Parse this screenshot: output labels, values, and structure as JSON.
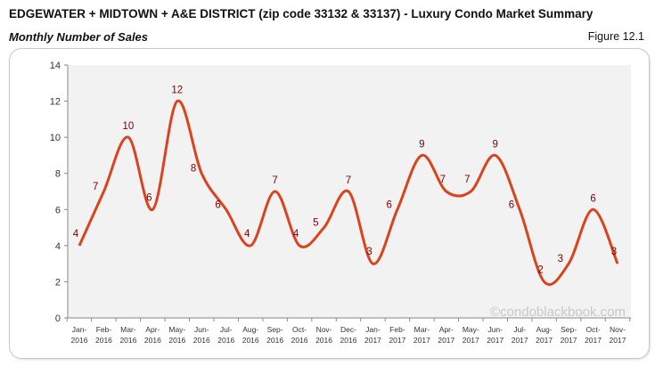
{
  "header": {
    "title": "EDGEWATER + MIDTOWN + A&E DISTRICT (zip code 33132 & 33137) - Luxury Condo Market Summary",
    "subtitle": "Monthly Number of Sales",
    "figure": "Figure 12.1"
  },
  "watermark": "©condoblackbook.com",
  "chart_data": {
    "type": "line",
    "title": "Monthly Number of Sales",
    "xlabel": "",
    "ylabel": "",
    "ylim": [
      0,
      14
    ],
    "yticks": [
      0,
      2,
      4,
      6,
      8,
      10,
      12,
      14
    ],
    "grid": false,
    "categories": [
      [
        "Jan-",
        "2016"
      ],
      [
        "Feb-",
        "2016"
      ],
      [
        "Mar-",
        "2016"
      ],
      [
        "Apr-",
        "2016"
      ],
      [
        "May-",
        "2016"
      ],
      [
        "Jun-",
        "2016"
      ],
      [
        "Jul-",
        "2016"
      ],
      [
        "Aug-",
        "2016"
      ],
      [
        "Sep-",
        "2016"
      ],
      [
        "Oct-",
        "2016"
      ],
      [
        "Nov-",
        "2016"
      ],
      [
        "Dec-",
        "2016"
      ],
      [
        "Jan-",
        "2017"
      ],
      [
        "Feb-",
        "2017"
      ],
      [
        "Mar-",
        "2017"
      ],
      [
        "Apr-",
        "2017"
      ],
      [
        "May-",
        "2017"
      ],
      [
        "Jun-",
        "2017"
      ],
      [
        "Jul-",
        "2017"
      ],
      [
        "Aug-",
        "2017"
      ],
      [
        "Sep-",
        "2017"
      ],
      [
        "Oct-",
        "2017"
      ],
      [
        "Nov-",
        "2017"
      ]
    ],
    "values": [
      4,
      7,
      10,
      6,
      12,
      8,
      6,
      4,
      7,
      4,
      5,
      7,
      3,
      6,
      9,
      7,
      7,
      9,
      6,
      2,
      3,
      6,
      3
    ],
    "line_color": "#d9431e",
    "label_color": "#7a0000",
    "plot_bg": "#f2f2f2"
  }
}
